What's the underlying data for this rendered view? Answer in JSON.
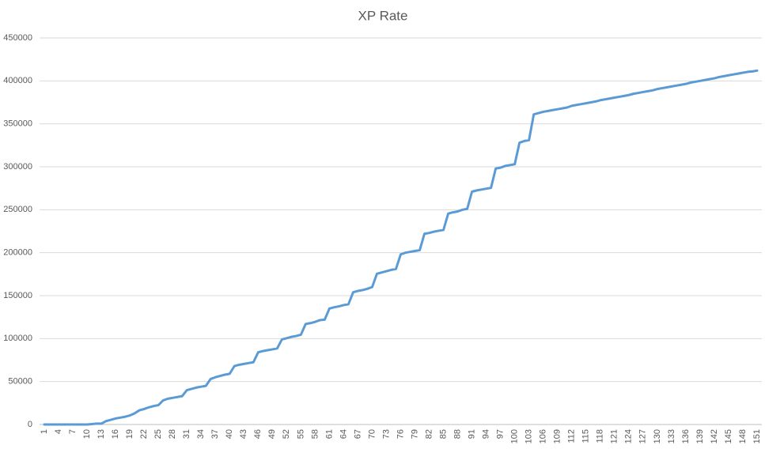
{
  "chart_data": {
    "type": "line",
    "title": "XP Rate",
    "categories": [
      1,
      null,
      null,
      4,
      null,
      null,
      7,
      null,
      null,
      10,
      null,
      null,
      13,
      null,
      null,
      16,
      null,
      null,
      19,
      null,
      null,
      22,
      null,
      null,
      25,
      null,
      null,
      28,
      null,
      null,
      31,
      null,
      null,
      34,
      null,
      null,
      37,
      null,
      null,
      40,
      null,
      null,
      43,
      null,
      null,
      46,
      null,
      null,
      49,
      null,
      null,
      52,
      null,
      null,
      55,
      null,
      null,
      58,
      null,
      null,
      61,
      null,
      null,
      64,
      null,
      null,
      67,
      null,
      null,
      70,
      null,
      null,
      73,
      null,
      null,
      76,
      null,
      null,
      79,
      null,
      null,
      82,
      null,
      null,
      85,
      null,
      null,
      88,
      null,
      null,
      91,
      null,
      null,
      94,
      null,
      null,
      97,
      null,
      null,
      100,
      null,
      null,
      103,
      null,
      null,
      106,
      null,
      null,
      109,
      null,
      null,
      112,
      null,
      null,
      115,
      null,
      null,
      118,
      null,
      null,
      121,
      null,
      null,
      124,
      null,
      null,
      127,
      null,
      null,
      130,
      null,
      null,
      133,
      null,
      null,
      136,
      null,
      null,
      139,
      null,
      null,
      142,
      null,
      null,
      145,
      null,
      null,
      148,
      null,
      null,
      151
    ],
    "values": [
      0,
      0,
      0,
      0,
      0,
      0,
      0,
      0,
      0,
      0,
      500,
      1000,
      1000,
      4000,
      5500,
      7000,
      8000,
      9000,
      10500,
      13000,
      16500,
      18000,
      20000,
      21500,
      22500,
      28000,
      30000,
      31000,
      32000,
      33000,
      40000,
      41500,
      43000,
      44000,
      45000,
      53000,
      55000,
      56500,
      58000,
      59000,
      68000,
      69500,
      70500,
      71500,
      72500,
      84000,
      85500,
      86500,
      87500,
      88500,
      99000,
      100500,
      102000,
      103000,
      104500,
      117000,
      118000,
      119500,
      121500,
      122000,
      135000,
      136500,
      137500,
      139000,
      140000,
      154000,
      155500,
      156500,
      158000,
      160000,
      175500,
      177000,
      178500,
      180000,
      181000,
      198000,
      200000,
      201000,
      202000,
      203000,
      222000,
      223000,
      224500,
      225500,
      226500,
      245500,
      247000,
      248000,
      250000,
      251000,
      271000,
      272500,
      273500,
      274500,
      275500,
      298000,
      299000,
      301000,
      302000,
      303000,
      328000,
      330000,
      331000,
      361000,
      362500,
      364000,
      365000,
      366000,
      367000,
      368000,
      369000,
      371000,
      372000,
      373000,
      374000,
      375000,
      376000,
      377500,
      378500,
      379500,
      380500,
      381500,
      382500,
      383500,
      385000,
      386000,
      387000,
      388000,
      389000,
      390500,
      391500,
      392500,
      393500,
      394500,
      395500,
      396500,
      398000,
      399000,
      400000,
      401000,
      402000,
      403000,
      404500,
      405500,
      406500,
      407500,
      408500,
      409500,
      410500,
      411000,
      412000
    ],
    "color": "#5b9bd5",
    "ylim": [
      0,
      450000
    ],
    "yticks": [
      0,
      50000,
      100000,
      150000,
      200000,
      250000,
      300000,
      350000,
      400000,
      450000
    ],
    "grid": true
  }
}
